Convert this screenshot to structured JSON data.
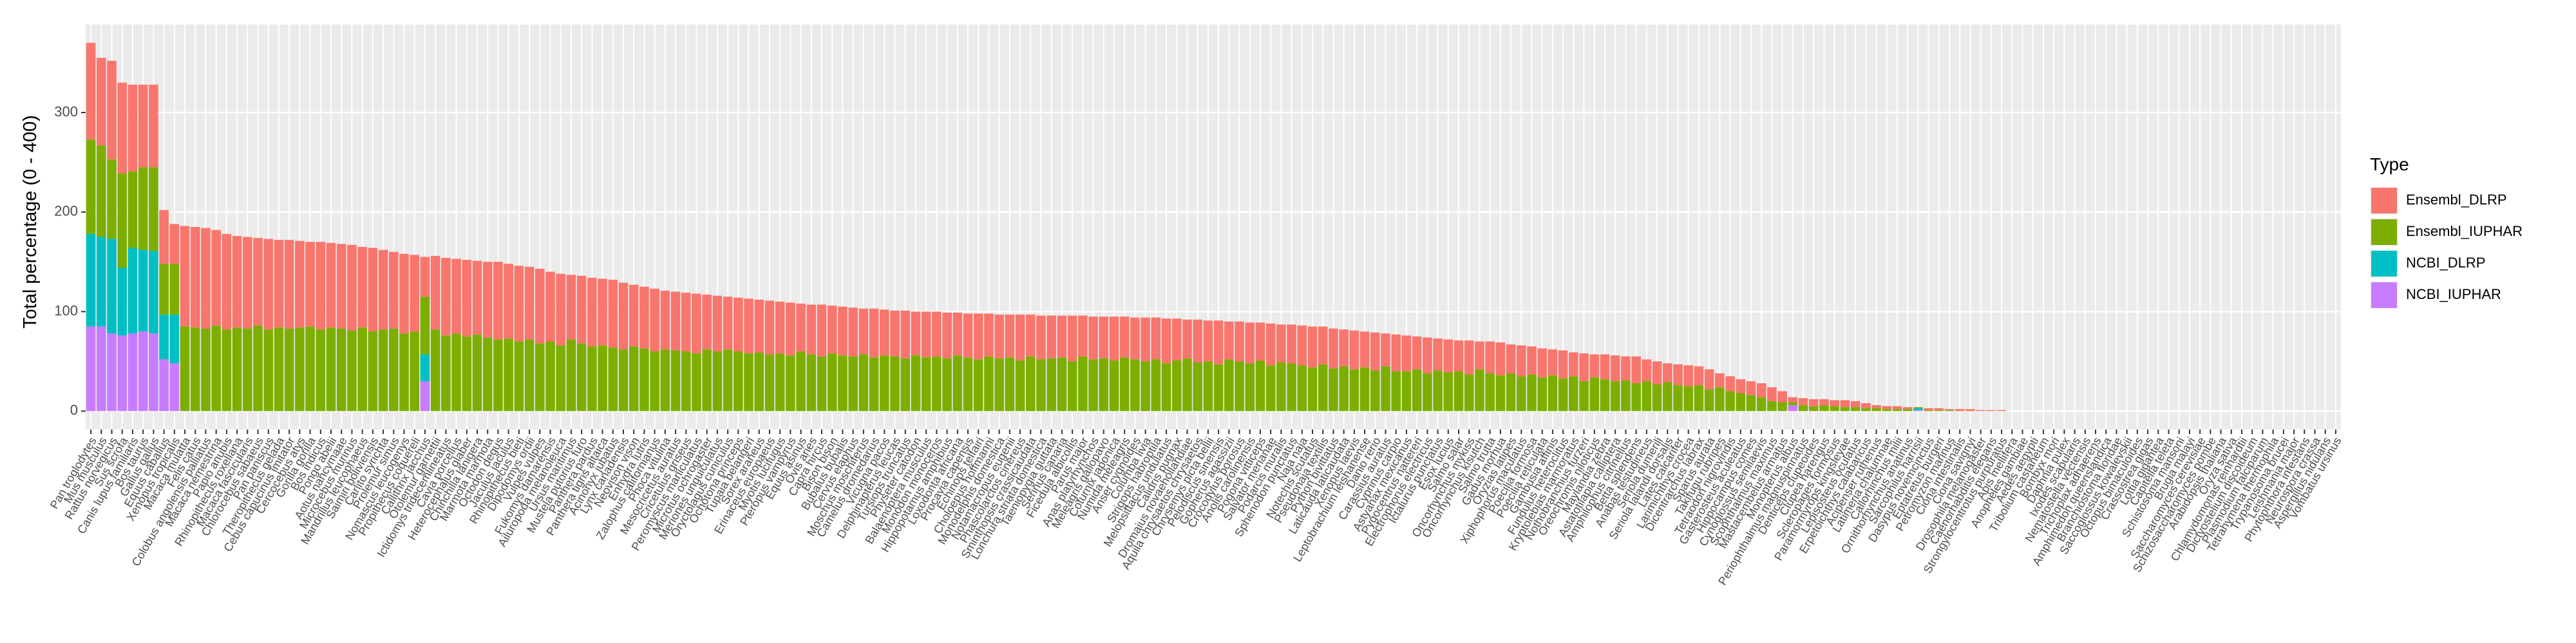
{
  "chart_data": {
    "type": "stacked_bar",
    "ylabel": "Total percentage (0 - 400)",
    "legend_title": "Type",
    "legend_position": "right",
    "grid": true,
    "ylim": [
      -18.5,
      388.5
    ],
    "yticks": [
      0,
      100,
      200,
      300
    ],
    "categories": [
      "Pan troglodytes",
      "Mus musculus",
      "Rattus norvegicus",
      "Sus scrofa",
      "Canis lupus familiaris",
      "Bos taurus",
      "Gallus gallus",
      "Equus caballus",
      "Xenopus tropicalis",
      "Macaca mulatta",
      "Felis catus",
      "Colobus angolensis palliatus",
      "Macaca nemestrina",
      "Papio anubis",
      "Rhinopithecus roxellana",
      "Macaca fascicularis",
      "Chlorocebus sabaeus",
      "Pan paniscus",
      "Theropithecus gelada",
      "Cebus capucinus imitator",
      "Cercocebus atys",
      "Gorilla gorilla",
      "Bos indicus",
      "Pongo abelii",
      "Aotus nancymaae",
      "Microcebus murinus",
      "Mandrillus leucophaeus",
      "Saimiri boliviensis",
      "Carlito syrichta",
      "Prolemur simus",
      "Nomascus leucogenys",
      "Propithecus coquereli",
      "Callithrix jacchus",
      "Otolemur garnettii",
      "Ictidomys tridecemlineatus",
      "Cavia porcellus",
      "Heterocephalus glaber",
      "Chinchilla lanigera",
      "Marmota marmota",
      "Octodon degus",
      "Jaculus jaculus",
      "Rhinopithecus bieti",
      "Dipodomys ordii",
      "Vulpes vulpes",
      "Fukomys damarensis",
      "Ailuropoda melanoleuca",
      "Ursus maritimus",
      "Mustela putorius furo",
      "Panthera pardus",
      "Panthera tigris altaica",
      "Acinonyx jubatus",
      "Lynx canadensis",
      "Neovison vison",
      "Enhydra lutris",
      "Zalophus californianus",
      "Phoca vitulina",
      "Mesocricetus auratus",
      "Cricetulus griseus",
      "Peromyscus maniculatus",
      "Microtus ochrogaster",
      "Meriones unguiculatus",
      "Oryctolagus cuniculus",
      "Ochotona princeps",
      "Tupaia belangeri",
      "Sorex araneus",
      "Erinaceus europaeus",
      "Myotis lucifugus",
      "Pteropus vampyrus",
      "Equus asinus",
      "Ovis aries",
      "Capra hircus",
      "Bison bison",
      "Bubalus bubalis",
      "Cervus elaphus",
      "Moschus moschiferus",
      "Camelus dromedarius",
      "Vicugna pacos",
      "Delphinapterus leucas",
      "Tursiops truncatus",
      "Physeter catodon",
      "Balaenoptera musculus",
      "Monodon monoceros",
      "Hippopotamus amphibius",
      "Loxodonta africana",
      "Procavia capensis",
      "Echinops telfairi",
      "Choloepus hoffmanni",
      "Monodelphis domestica",
      "Notamacropus eugenii",
      "Phascolarctos cinereus",
      "Sminthopsis crassicaudata",
      "Lonchura striata domestica",
      "Taeniopygia guttata",
      "Serinus canaria",
      "Ficedula albicollis",
      "Parus major",
      "Anas platyrhynchos",
      "Meleagris gallopavo",
      "Coturnix japonica",
      "Numida meleagris",
      "Anser cygnoides",
      "Columba livia",
      "Strigops habroptila",
      "Melopsittacus undulatus",
      "Calidris pugnax",
      "Dromaius novaehollandiae",
      "Aquila chrysaetos chrysaetos",
      "Chrysemys picta bellii",
      "Pelodiscus sinensis",
      "Gopherus agassizii",
      "Crocodylus porosus",
      "Anolis carolinensis",
      "Pogona vitticeps",
      "Salvator merianae",
      "Podarcis muralis",
      "Sphenodon punctatus",
      "Naja naja",
      "Notechis scutatus",
      "Pseudonaja textilis",
      "Python bivittatus",
      "Laticauda laticaudata",
      "Xenopus laevis",
      "Leptobrachium leishanense",
      "Danio rerio",
      "Carassius auratus",
      "Cyprinus carpio",
      "Astyanax mexicanus",
      "Pygocentrus nattereri",
      "Electrophorus electricus",
      "Ictalurus punctatus",
      "Esox lucius",
      "Salmo salar",
      "Oncorhynchus mykiss",
      "Oncorhynchus kisutch",
      "Salmo trutta",
      "Gadus morhua",
      "Oryzias latipes",
      "Xiphophorus maculatus",
      "Poecilia formosa",
      "Poecilia reticulata",
      "Gambusia affinis",
      "Fundulus heteroclitus",
      "Kryptolebias marmoratus",
      "Nothobranchius furzeri",
      "Oreochromis niloticus",
      "Maylandia zebra",
      "Astatotilapia calliptera",
      "Amphilophus citrinellus",
      "Betta splendens",
      "Anabas testudineus",
      "Seriola dumerili",
      "Seriola lalandi dorsalis",
      "Lates calcarifer",
      "Larimichthys crocea",
      "Dicentrarchus labrax",
      "Sparus aurata",
      "Takifugu rubripes",
      "Tetraodon nigroviridis",
      "Gasterosteus aculeatus",
      "Hippocampus comes",
      "Cynoglossus semilaevis",
      "Scophthalmus maximus",
      "Mastacembelus armatus",
      "Monopterus albus",
      "Periophthalmus magnuspinnatus",
      "Denticeps clupeoides",
      "Clupea harengus",
      "Scleropages formosus",
      "Paramormyrops kingsleyae",
      "Lepisosteus oculatus",
      "Erpetoichthys calabaricus",
      "Acipenser ruthenus",
      "Latimeria chalumnae",
      "Callorhinchus milii",
      "Ornithorhynchus anatinus",
      "Sarcophilus harrisii",
      "Dasypus novemcinctus",
      "Eptatretus burgeri",
      "Petromyzon marinus",
      "Ciona intestinalis",
      "Ciona savignyi",
      "Drosophila melanogaster",
      "Caenorhabditis elegans",
      "Strongylocentrotus purpuratus",
      "Apis mellifera",
      "Anopheles gambiae",
      "Aedes aegypti",
      "Tribolium castaneum",
      "Bombyx mori",
      "Daphnia pulex",
      "Ixodes scapularis",
      "Nematostella vectensis",
      "Trichoplax adhaerens",
      "Amphimedon queenslandica",
      "Branchiostoma floridae",
      "Saccoglossus kowalevskii",
      "Octopus bimaculoides",
      "Crassostrea gigas",
      "Lottia gigantea",
      "Capitella teleta",
      "Schistosoma mansoni",
      "Brugia malayi",
      "Saccharomyces cerevisiae",
      "Schizosaccharomyces pombe",
      "Arabidopsis thaliana",
      "Oryza sativa",
      "Chlamydomonas reinhardtii",
      "Dictyostelium discoideum",
      "Plasmodium falciparum",
      "Tetrahymena thermophila",
      "Trypanosoma brucei",
      "Leishmania major",
      "Phytophthora infestans",
      "Neurospora crassa",
      "Aspergillus nidulans",
      "Vombatus ursinus"
    ],
    "series": [
      {
        "name": "Ensembl_DLRP",
        "color": "#F8766D",
        "values": [
          97,
          88,
          99,
          91,
          87,
          83,
          83,
          54,
          40,
          101,
          101,
          101,
          96,
          96,
          92,
          92,
          88,
          91,
          88,
          89,
          87,
          85,
          88,
          85,
          85,
          86,
          81,
          84,
          80,
          77,
          80,
          77,
          40,
          74,
          78,
          75,
          77,
          74,
          76,
          78,
          75,
          76,
          73,
          75,
          70,
          72,
          65,
          68,
          69,
          67,
          68,
          67,
          62,
          62,
          63,
          59,
          59,
          59,
          60,
          55,
          56,
          53,
          54,
          55,
          53,
          54,
          52,
          53,
          48,
          50,
          52,
          48,
          49,
          49,
          46,
          49,
          46,
          46,
          48,
          44,
          46,
          45,
          46,
          43,
          44,
          46,
          43,
          44,
          43,
          46,
          42,
          44,
          43,
          42,
          46,
          41,
          43,
          42,
          44,
          41,
          42,
          44,
          42,
          45,
          42,
          39,
          43,
          41,
          44,
          38,
          40,
          41,
          38,
          42,
          38,
          39,
          40,
          41,
          38,
          40,
          37,
          39,
          36,
          38,
          33,
          37,
          36,
          33,
          36,
          32,
          33,
          31,
          34,
          28,
          32,
          33,
          29,
          31,
          28,
          29,
          26,
          28,
          24,
          28,
          23,
          25,
          26,
          24,
          27,
          22,
          23,
          19,
          21,
          21,
          19,
          20,
          14,
          15,
          14,
          14,
          14,
          14,
          11,
          5,
          7,
          7,
          6,
          6,
          7,
          6,
          5,
          3,
          3,
          3,
          2,
          0,
          2,
          2,
          1,
          2,
          2,
          1,
          1,
          1,
          0,
          0,
          0,
          0,
          0,
          0,
          0,
          0,
          0,
          0,
          0,
          0,
          0,
          0,
          0,
          0,
          0,
          0,
          0,
          0,
          0,
          0,
          0,
          0,
          0,
          0,
          0,
          0,
          0,
          0,
          0,
          0
        ]
      },
      {
        "name": "Ensembl_IUPHAR",
        "color": "#7CAE00",
        "values": [
          95,
          92,
          80,
          95,
          77,
          83,
          84,
          51,
          51,
          85,
          84,
          83,
          86,
          82,
          84,
          83,
          86,
          82,
          84,
          83,
          84,
          85,
          82,
          84,
          83,
          81,
          84,
          80,
          82,
          83,
          78,
          80,
          58,
          82,
          76,
          78,
          75,
          77,
          74,
          72,
          73,
          70,
          72,
          68,
          70,
          66,
          72,
          68,
          65,
          66,
          64,
          62,
          65,
          63,
          60,
          62,
          61,
          60,
          58,
          62,
          60,
          62,
          60,
          58,
          59,
          57,
          58,
          56,
          60,
          57,
          55,
          58,
          56,
          55,
          57,
          54,
          56,
          55,
          53,
          56,
          54,
          55,
          53,
          56,
          54,
          52,
          55,
          53,
          54,
          51,
          55,
          52,
          53,
          54,
          50,
          55,
          52,
          53,
          51,
          54,
          52,
          50,
          52,
          48,
          51,
          53,
          49,
          50,
          47,
          52,
          50,
          48,
          51,
          46,
          49,
          48,
          46,
          44,
          47,
          43,
          45,
          42,
          44,
          41,
          45,
          40,
          40,
          42,
          38,
          41,
          39,
          40,
          37,
          42,
          38,
          36,
          38,
          35,
          37,
          34,
          36,
          33,
          35,
          30,
          34,
          32,
          30,
          31,
          28,
          30,
          27,
          29,
          26,
          25,
          26,
          22,
          24,
          20,
          18,
          16,
          14,
          10,
          9,
          3,
          6,
          5,
          6,
          5,
          4,
          4,
          3,
          3,
          2,
          2,
          2,
          1,
          1,
          1,
          1,
          0,
          0,
          0,
          0,
          0,
          0,
          0,
          0,
          0,
          0,
          0,
          0,
          0,
          0,
          0,
          0,
          0,
          0,
          0,
          0,
          0,
          0,
          0,
          0,
          0,
          0,
          0,
          0,
          0,
          0,
          0,
          0,
          0,
          0,
          0,
          0,
          0
        ]
      },
      {
        "name": "NCBI_DLRP",
        "color": "#00BFC4",
        "values": [
          93,
          90,
          95,
          68,
          86,
          82,
          83,
          45,
          49,
          0,
          0,
          0,
          0,
          0,
          0,
          0,
          0,
          0,
          0,
          0,
          0,
          0,
          0,
          0,
          0,
          0,
          0,
          0,
          0,
          0,
          0,
          0,
          27,
          0,
          0,
          0,
          0,
          0,
          0,
          0,
          0,
          0,
          0,
          0,
          0,
          0,
          0,
          0,
          0,
          0,
          0,
          0,
          0,
          0,
          0,
          0,
          0,
          0,
          0,
          0,
          0,
          0,
          0,
          0,
          0,
          0,
          0,
          0,
          0,
          0,
          0,
          0,
          0,
          0,
          0,
          0,
          0,
          0,
          0,
          0,
          0,
          0,
          0,
          0,
          0,
          0,
          0,
          0,
          0,
          0,
          0,
          0,
          0,
          0,
          0,
          0,
          0,
          0,
          0,
          0,
          0,
          0,
          0,
          0,
          0,
          0,
          0,
          0,
          0,
          0,
          0,
          0,
          0,
          0,
          0,
          0,
          0,
          0,
          0,
          0,
          0,
          0,
          0,
          0,
          0,
          0,
          0,
          0,
          0,
          0,
          0,
          0,
          0,
          0,
          0,
          0,
          0,
          0,
          0,
          0,
          0,
          0,
          0,
          0,
          0,
          0,
          0,
          0,
          0,
          0,
          0,
          0,
          0,
          0,
          0,
          0,
          0,
          0,
          0,
          0,
          0,
          0,
          0,
          0,
          0,
          0,
          0,
          0,
          0,
          0,
          0,
          0,
          0,
          0,
          0,
          2,
          0,
          0,
          0,
          0,
          0,
          0,
          0,
          0,
          0,
          0,
          0,
          0,
          0,
          0,
          0,
          0,
          0,
          0,
          0,
          0,
          0,
          0,
          0,
          0,
          0,
          0,
          0,
          0,
          0,
          0,
          0,
          0,
          0,
          0,
          0,
          0,
          0,
          0,
          0,
          0
        ]
      },
      {
        "name": "NCBI_IUPHAR",
        "color": "#C77CFF",
        "values": [
          85,
          85,
          78,
          76,
          78,
          80,
          78,
          52,
          48,
          0,
          0,
          0,
          0,
          0,
          0,
          0,
          0,
          0,
          0,
          0,
          0,
          0,
          0,
          0,
          0,
          0,
          0,
          0,
          0,
          0,
          0,
          0,
          30,
          0,
          0,
          0,
          0,
          0,
          0,
          0,
          0,
          0,
          0,
          0,
          0,
          0,
          0,
          0,
          0,
          0,
          0,
          0,
          0,
          0,
          0,
          0,
          0,
          0,
          0,
          0,
          0,
          0,
          0,
          0,
          0,
          0,
          0,
          0,
          0,
          0,
          0,
          0,
          0,
          0,
          0,
          0,
          0,
          0,
          0,
          0,
          0,
          0,
          0,
          0,
          0,
          0,
          0,
          0,
          0,
          0,
          0,
          0,
          0,
          0,
          0,
          0,
          0,
          0,
          0,
          0,
          0,
          0,
          0,
          0,
          0,
          0,
          0,
          0,
          0,
          0,
          0,
          0,
          0,
          0,
          0,
          0,
          0,
          0,
          0,
          0,
          0,
          0,
          0,
          0,
          0,
          0,
          0,
          0,
          0,
          0,
          0,
          0,
          0,
          0,
          0,
          0,
          0,
          0,
          0,
          0,
          0,
          0,
          0,
          0,
          0,
          0,
          0,
          0,
          0,
          0,
          0,
          0,
          0,
          0,
          0,
          0,
          0,
          0,
          0,
          0,
          0,
          0,
          0,
          6,
          0,
          0,
          0,
          0,
          0,
          0,
          0,
          0,
          0,
          0,
          0,
          1,
          0,
          0,
          0,
          0,
          0,
          0,
          0,
          0,
          0,
          0,
          0,
          0,
          0,
          0,
          0,
          0,
          0,
          0,
          0,
          0,
          0,
          0,
          0,
          0,
          0,
          0,
          0,
          0,
          0,
          0,
          0,
          0,
          0,
          0,
          0,
          0,
          0,
          0,
          0,
          0
        ]
      }
    ]
  }
}
